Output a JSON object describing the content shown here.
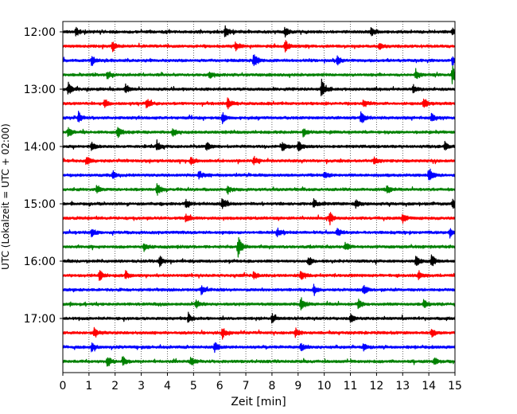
{
  "chart_data": {
    "type": "line",
    "title": "",
    "xlabel": "Zeit  [min]",
    "ylabel": "UTC (Lokalzeit = UTC + 02:00)",
    "xlim": [
      0,
      15
    ],
    "x_ticks": [
      "0",
      "1",
      "2",
      "3",
      "4",
      "5",
      "6",
      "7",
      "8",
      "9",
      "10",
      "11",
      "12",
      "13",
      "14",
      "15"
    ],
    "y_tick_labels": [
      "12:00",
      "13:00",
      "14:00",
      "15:00",
      "16:00",
      "17:00"
    ],
    "grid": "vertical dotted lines at each minute",
    "row_colors": [
      "#000000",
      "#ff0000",
      "#0000ff",
      "#008000"
    ],
    "rows": [
      {
        "start": "12:00",
        "color": "#000000",
        "events": [
          [
            0.5,
            0.6
          ],
          [
            6.2,
            0.8
          ],
          [
            8.5,
            0.7
          ],
          [
            11.8,
            0.6
          ],
          [
            14.9,
            0.6
          ]
        ]
      },
      {
        "start": "12:15",
        "color": "#ff0000",
        "events": [
          [
            1.9,
            0.7
          ],
          [
            6.6,
            0.6
          ],
          [
            8.5,
            0.8
          ],
          [
            12.1,
            0.6
          ]
        ]
      },
      {
        "start": "12:30",
        "color": "#0000ff",
        "events": [
          [
            1.1,
            0.7
          ],
          [
            7.3,
            1.2
          ],
          [
            10.5,
            0.6
          ],
          [
            14.9,
            0.6
          ]
        ]
      },
      {
        "start": "12:45",
        "color": "#008000",
        "events": [
          [
            1.7,
            0.6
          ],
          [
            5.6,
            0.6
          ],
          [
            13.5,
            0.8
          ],
          [
            14.9,
            1.3
          ]
        ]
      },
      {
        "start": "13:00",
        "color": "#000000",
        "events": [
          [
            0.2,
            1.0
          ],
          [
            2.4,
            0.6
          ],
          [
            9.9,
            1.3
          ],
          [
            13.4,
            0.6
          ]
        ]
      },
      {
        "start": "13:15",
        "color": "#ff0000",
        "events": [
          [
            1.6,
            0.6
          ],
          [
            3.2,
            0.7
          ],
          [
            6.3,
            0.7
          ],
          [
            11.5,
            0.6
          ],
          [
            13.8,
            0.8
          ]
        ]
      },
      {
        "start": "13:30",
        "color": "#0000ff",
        "events": [
          [
            0.6,
            0.7
          ],
          [
            6.1,
            0.8
          ],
          [
            11.4,
            0.9
          ],
          [
            14.1,
            0.6
          ]
        ]
      },
      {
        "start": "13:45",
        "color": "#008000",
        "events": [
          [
            0.2,
            0.8
          ],
          [
            2.1,
            0.8
          ],
          [
            4.2,
            0.6
          ],
          [
            9.2,
            0.6
          ]
        ]
      },
      {
        "start": "14:00",
        "color": "#000000",
        "events": [
          [
            1.1,
            0.6
          ],
          [
            3.6,
            0.8
          ],
          [
            5.5,
            0.7
          ],
          [
            8.4,
            0.7
          ],
          [
            9.0,
            0.8
          ],
          [
            14.6,
            0.6
          ]
        ]
      },
      {
        "start": "14:15",
        "color": "#ff0000",
        "events": [
          [
            0.9,
            0.6
          ],
          [
            4.9,
            0.6
          ],
          [
            7.3,
            0.6
          ],
          [
            11.9,
            0.6
          ]
        ]
      },
      {
        "start": "14:30",
        "color": "#0000ff",
        "events": [
          [
            1.9,
            0.6
          ],
          [
            5.2,
            0.6
          ],
          [
            10.0,
            0.6
          ],
          [
            14.0,
            1.1
          ]
        ]
      },
      {
        "start": "14:45",
        "color": "#008000",
        "events": [
          [
            1.3,
            0.6
          ],
          [
            3.6,
            0.9
          ],
          [
            6.3,
            0.6
          ],
          [
            12.4,
            0.6
          ]
        ]
      },
      {
        "start": "15:00",
        "color": "#000000",
        "events": [
          [
            4.7,
            0.7
          ],
          [
            6.1,
            0.9
          ],
          [
            9.6,
            0.7
          ],
          [
            11.2,
            0.6
          ],
          [
            14.9,
            0.8
          ]
        ]
      },
      {
        "start": "15:15",
        "color": "#ff0000",
        "events": [
          [
            4.7,
            0.6
          ],
          [
            10.2,
            1.0
          ],
          [
            13.0,
            0.7
          ]
        ]
      },
      {
        "start": "15:30",
        "color": "#0000ff",
        "events": [
          [
            1.1,
            0.6
          ],
          [
            8.2,
            0.7
          ],
          [
            10.5,
            0.6
          ],
          [
            14.8,
            0.6
          ]
        ]
      },
      {
        "start": "15:45",
        "color": "#008000",
        "events": [
          [
            3.1,
            0.6
          ],
          [
            6.7,
            1.4
          ],
          [
            10.8,
            0.6
          ]
        ]
      },
      {
        "start": "16:00",
        "color": "#000000",
        "events": [
          [
            3.7,
            0.7
          ],
          [
            9.4,
            0.7
          ],
          [
            13.5,
            0.8
          ],
          [
            14.1,
            0.9
          ]
        ]
      },
      {
        "start": "16:15",
        "color": "#ff0000",
        "events": [
          [
            1.4,
            0.8
          ],
          [
            2.4,
            0.6
          ],
          [
            7.3,
            0.6
          ],
          [
            9.1,
            0.6
          ],
          [
            13.6,
            0.7
          ]
        ]
      },
      {
        "start": "16:30",
        "color": "#0000ff",
        "events": [
          [
            5.3,
            0.7
          ],
          [
            9.6,
            0.6
          ],
          [
            11.5,
            0.6
          ]
        ]
      },
      {
        "start": "16:45",
        "color": "#008000",
        "events": [
          [
            5.1,
            0.7
          ],
          [
            9.1,
            1.1
          ],
          [
            11.3,
            0.6
          ],
          [
            13.8,
            0.6
          ]
        ]
      },
      {
        "start": "17:00",
        "color": "#000000",
        "events": [
          [
            4.8,
            0.7
          ],
          [
            8.0,
            0.7
          ],
          [
            11.0,
            0.6
          ]
        ]
      },
      {
        "start": "17:15",
        "color": "#ff0000",
        "events": [
          [
            1.2,
            0.6
          ],
          [
            6.1,
            0.8
          ],
          [
            8.9,
            0.6
          ],
          [
            14.1,
            0.6
          ]
        ]
      },
      {
        "start": "17:30",
        "color": "#0000ff",
        "events": [
          [
            1.1,
            0.6
          ],
          [
            5.8,
            0.8
          ],
          [
            9.1,
            0.6
          ],
          [
            11.5,
            0.6
          ]
        ]
      },
      {
        "start": "17:45",
        "color": "#008000",
        "events": [
          [
            1.7,
            0.9
          ],
          [
            2.3,
            0.6
          ],
          [
            4.9,
            0.6
          ],
          [
            14.2,
            0.6
          ]
        ]
      }
    ]
  }
}
